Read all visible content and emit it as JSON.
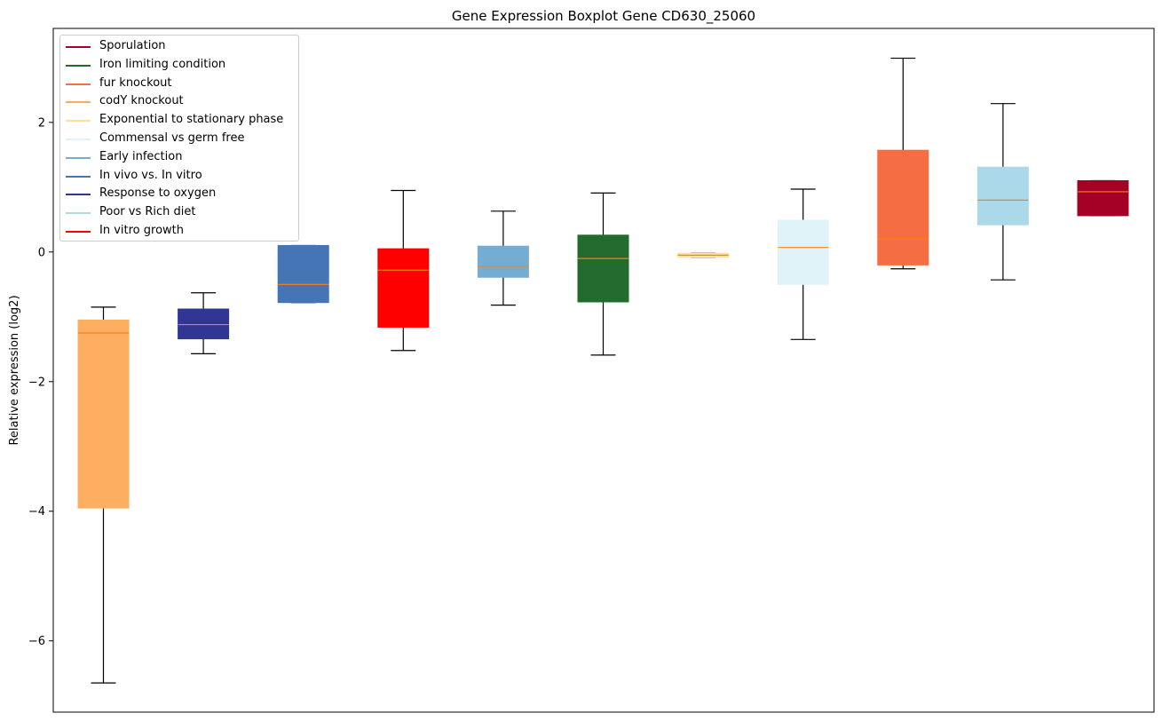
{
  "chart_data": {
    "type": "boxplot",
    "title": "Gene Expression Boxplot Gene CD630_25060",
    "xlabel": "",
    "ylabel": "Relative expression (log2)",
    "ylim": [
      -7.1,
      3.45
    ],
    "yticks": [
      -6,
      -4,
      -2,
      0,
      2
    ],
    "show_xticks": false,
    "legend_position": "top-left",
    "legend": [
      {
        "label": "Sporulation",
        "color": "#a50026"
      },
      {
        "label": "Iron limiting condition",
        "color": "#226b2e"
      },
      {
        "label": "fur knockout",
        "color": "#f46d43"
      },
      {
        "label": "codY knockout",
        "color": "#fdae61"
      },
      {
        "label": "Exponential to stationary phase",
        "color": "#fee090"
      },
      {
        "label": "Commensal vs germ free",
        "color": "#e0f3f8"
      },
      {
        "label": "Early infection",
        "color": "#74add1"
      },
      {
        "label": "In vivo vs. In vitro",
        "color": "#4575b4"
      },
      {
        "label": "Response to oxygen",
        "color": "#313695"
      },
      {
        "label": "Poor vs Rich diet",
        "color": "#abd9e9"
      },
      {
        "label": "In vitro growth",
        "color": "#ff0000"
      }
    ],
    "boxes": [
      {
        "group": "codY knockout",
        "color": "#fdae61",
        "whisker_low": -6.65,
        "q1": -3.95,
        "median": -1.25,
        "q3": -1.05,
        "whisker_high": -0.85
      },
      {
        "group": "Response to oxygen",
        "color": "#313695",
        "whisker_low": -1.57,
        "q1": -1.34,
        "median": -1.12,
        "q3": -0.88,
        "whisker_high": -0.63
      },
      {
        "group": "In vivo vs. In vitro",
        "color": "#4575b4",
        "whisker_low": -0.78,
        "q1": -0.78,
        "median": -0.5,
        "q3": 0.1,
        "whisker_high": 0.1
      },
      {
        "group": "In vitro growth",
        "color": "#ff0000",
        "whisker_low": -1.52,
        "q1": -1.16,
        "median": -0.28,
        "q3": 0.05,
        "whisker_high": 0.95
      },
      {
        "group": "Early infection",
        "color": "#74add1",
        "whisker_low": -0.82,
        "q1": -0.39,
        "median": -0.22,
        "q3": 0.09,
        "whisker_high": 0.63
      },
      {
        "group": "Iron limiting condition",
        "color": "#226b2e",
        "whisker_low": -1.59,
        "q1": -0.77,
        "median": -0.1,
        "q3": 0.26,
        "whisker_high": 0.91
      },
      {
        "group": "Exponential to stationary phase",
        "color": "#fee090",
        "whisker_low": -0.08,
        "q1": -0.08,
        "median": -0.05,
        "q3": -0.02,
        "whisker_high": -0.02
      },
      {
        "group": "Commensal vs germ free",
        "color": "#e0f3f8",
        "whisker_low": -1.35,
        "q1": -0.5,
        "median": 0.07,
        "q3": 0.49,
        "whisker_high": 0.97
      },
      {
        "group": "fur knockout",
        "color": "#f46d43",
        "whisker_low": -0.26,
        "q1": -0.2,
        "median": 0.2,
        "q3": 1.57,
        "whisker_high": 2.99
      },
      {
        "group": "Poor vs Rich diet",
        "color": "#abd9e9",
        "whisker_low": -0.43,
        "q1": 0.42,
        "median": 0.8,
        "q3": 1.31,
        "whisker_high": 2.29
      },
      {
        "group": "Sporulation",
        "color": "#a50026",
        "whisker_low": 0.56,
        "q1": 0.56,
        "median": 0.93,
        "q3": 1.1,
        "whisker_high": 1.1
      }
    ]
  }
}
